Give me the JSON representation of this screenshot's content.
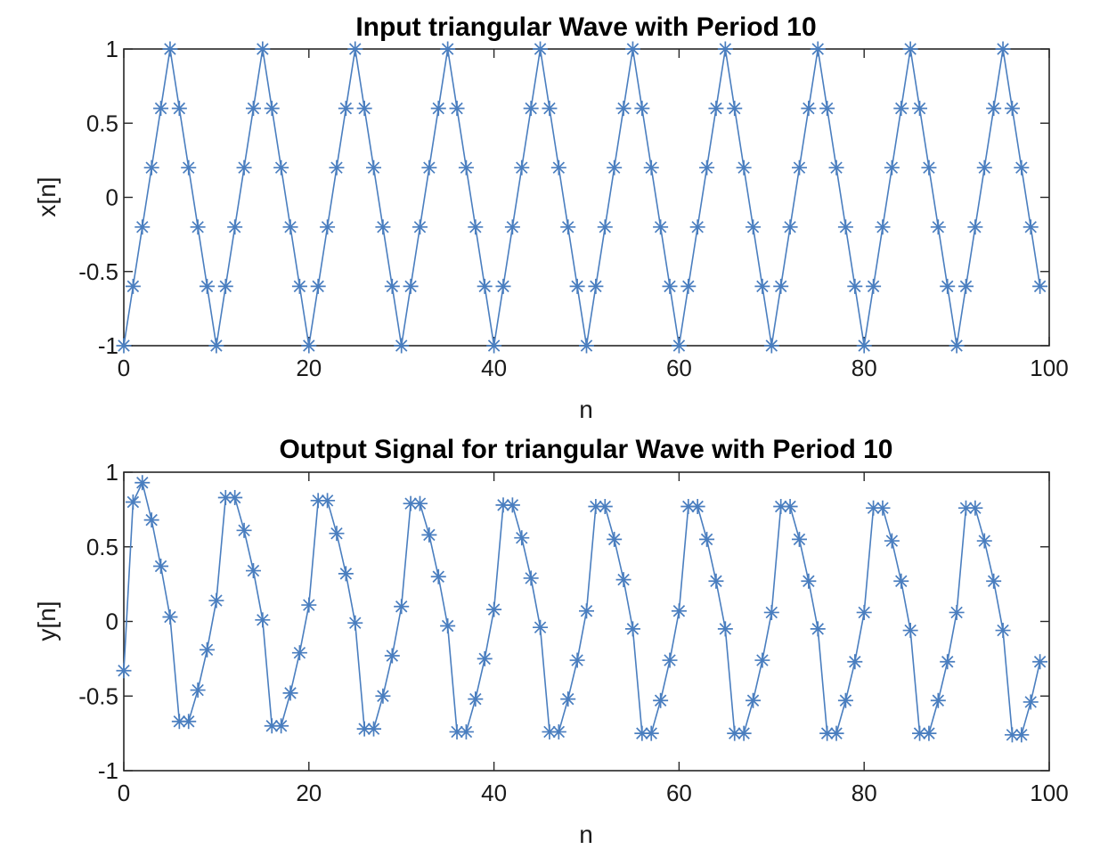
{
  "colors": {
    "series": "#4a7ebf",
    "axes": "#262626"
  },
  "chart_data": [
    {
      "type": "line",
      "title": "Input triangular Wave with Period 10",
      "xlabel": "n",
      "ylabel": "x[n]",
      "xlim": [
        0,
        100
      ],
      "ylim": [
        -1,
        1
      ],
      "xticks": [
        "0",
        "20",
        "40",
        "60",
        "80",
        "100"
      ],
      "yticks": [
        "-1",
        "-0.5",
        "0",
        "0.5",
        "1"
      ],
      "grid": false,
      "marker": "asterisk",
      "x": [
        0,
        1,
        2,
        3,
        4,
        5,
        6,
        7,
        8,
        9,
        10,
        11,
        12,
        13,
        14,
        15,
        16,
        17,
        18,
        19,
        20,
        21,
        22,
        23,
        24,
        25,
        26,
        27,
        28,
        29,
        30,
        31,
        32,
        33,
        34,
        35,
        36,
        37,
        38,
        39,
        40,
        41,
        42,
        43,
        44,
        45,
        46,
        47,
        48,
        49,
        50,
        51,
        52,
        53,
        54,
        55,
        56,
        57,
        58,
        59,
        60,
        61,
        62,
        63,
        64,
        65,
        66,
        67,
        68,
        69,
        70,
        71,
        72,
        73,
        74,
        75,
        76,
        77,
        78,
        79,
        80,
        81,
        82,
        83,
        84,
        85,
        86,
        87,
        88,
        89,
        90,
        91,
        92,
        93,
        94,
        95,
        96,
        97,
        98,
        99
      ],
      "y": [
        -1,
        -0.6,
        -0.2,
        0.2,
        0.6,
        1,
        0.6,
        0.2,
        -0.2,
        -0.6,
        -1,
        -0.6,
        -0.2,
        0.2,
        0.6,
        1,
        0.6,
        0.2,
        -0.2,
        -0.6,
        -1,
        -0.6,
        -0.2,
        0.2,
        0.6,
        1,
        0.6,
        0.2,
        -0.2,
        -0.6,
        -1,
        -0.6,
        -0.2,
        0.2,
        0.6,
        1,
        0.6,
        0.2,
        -0.2,
        -0.6,
        -1,
        -0.6,
        -0.2,
        0.2,
        0.6,
        1,
        0.6,
        0.2,
        -0.2,
        -0.6,
        -1,
        -0.6,
        -0.2,
        0.2,
        0.6,
        1,
        0.6,
        0.2,
        -0.2,
        -0.6,
        -1,
        -0.6,
        -0.2,
        0.2,
        0.6,
        1,
        0.6,
        0.2,
        -0.2,
        -0.6,
        -1,
        -0.6,
        -0.2,
        0.2,
        0.6,
        1,
        0.6,
        0.2,
        -0.2,
        -0.6,
        -1,
        -0.6,
        -0.2,
        0.2,
        0.6,
        1,
        0.6,
        0.2,
        -0.2,
        -0.6,
        -1,
        -0.6,
        -0.2,
        0.2,
        0.6,
        1,
        0.6,
        0.2,
        -0.2,
        -0.6
      ]
    },
    {
      "type": "line",
      "title": "Output Signal for triangular Wave with Period 10",
      "xlabel": "n",
      "ylabel": "y[n]",
      "xlim": [
        0,
        100
      ],
      "ylim": [
        -1,
        1
      ],
      "xticks": [
        "0",
        "20",
        "40",
        "60",
        "80",
        "100"
      ],
      "yticks": [
        "-1",
        "-0.5",
        "0",
        "0.5",
        "1"
      ],
      "grid": false,
      "marker": "asterisk",
      "x": [
        0,
        1,
        2,
        3,
        4,
        5,
        6,
        7,
        8,
        9,
        10,
        11,
        12,
        13,
        14,
        15,
        16,
        17,
        18,
        19,
        20,
        21,
        22,
        23,
        24,
        25,
        26,
        27,
        28,
        29,
        30,
        31,
        32,
        33,
        34,
        35,
        36,
        37,
        38,
        39,
        40,
        41,
        42,
        43,
        44,
        45,
        46,
        47,
        48,
        49,
        50,
        51,
        52,
        53,
        54,
        55,
        56,
        57,
        58,
        59,
        60,
        61,
        62,
        63,
        64,
        65,
        66,
        67,
        68,
        69,
        70,
        71,
        72,
        73,
        74,
        75,
        76,
        77,
        78,
        79,
        80,
        81,
        82,
        83,
        84,
        85,
        86,
        87,
        88,
        89,
        90,
        91,
        92,
        93,
        94,
        95,
        96,
        97,
        98,
        99
      ],
      "y": [
        -0.33,
        0.8,
        0.93,
        0.68,
        0.37,
        0.03,
        -0.67,
        -0.67,
        -0.46,
        -0.19,
        0.14,
        0.83,
        0.83,
        0.61,
        0.34,
        0.01,
        -0.7,
        -0.7,
        -0.48,
        -0.21,
        0.11,
        0.81,
        0.81,
        0.59,
        0.32,
        -0.01,
        -0.72,
        -0.72,
        -0.5,
        -0.23,
        0.1,
        0.79,
        0.79,
        0.58,
        0.3,
        -0.03,
        -0.74,
        -0.74,
        -0.52,
        -0.25,
        0.08,
        0.78,
        0.78,
        0.56,
        0.29,
        -0.04,
        -0.74,
        -0.74,
        -0.52,
        -0.26,
        0.07,
        0.77,
        0.77,
        0.55,
        0.28,
        -0.05,
        -0.75,
        -0.75,
        -0.53,
        -0.26,
        0.07,
        0.77,
        0.77,
        0.55,
        0.27,
        -0.05,
        -0.75,
        -0.75,
        -0.53,
        -0.26,
        0.06,
        0.77,
        0.77,
        0.55,
        0.27,
        -0.05,
        -0.75,
        -0.75,
        -0.53,
        -0.27,
        0.06,
        0.76,
        0.76,
        0.54,
        0.27,
        -0.06,
        -0.75,
        -0.75,
        -0.53,
        -0.27,
        0.06,
        0.76,
        0.76,
        0.54,
        0.27,
        -0.06,
        -0.76,
        -0.76,
        -0.54,
        -0.27
      ]
    }
  ]
}
